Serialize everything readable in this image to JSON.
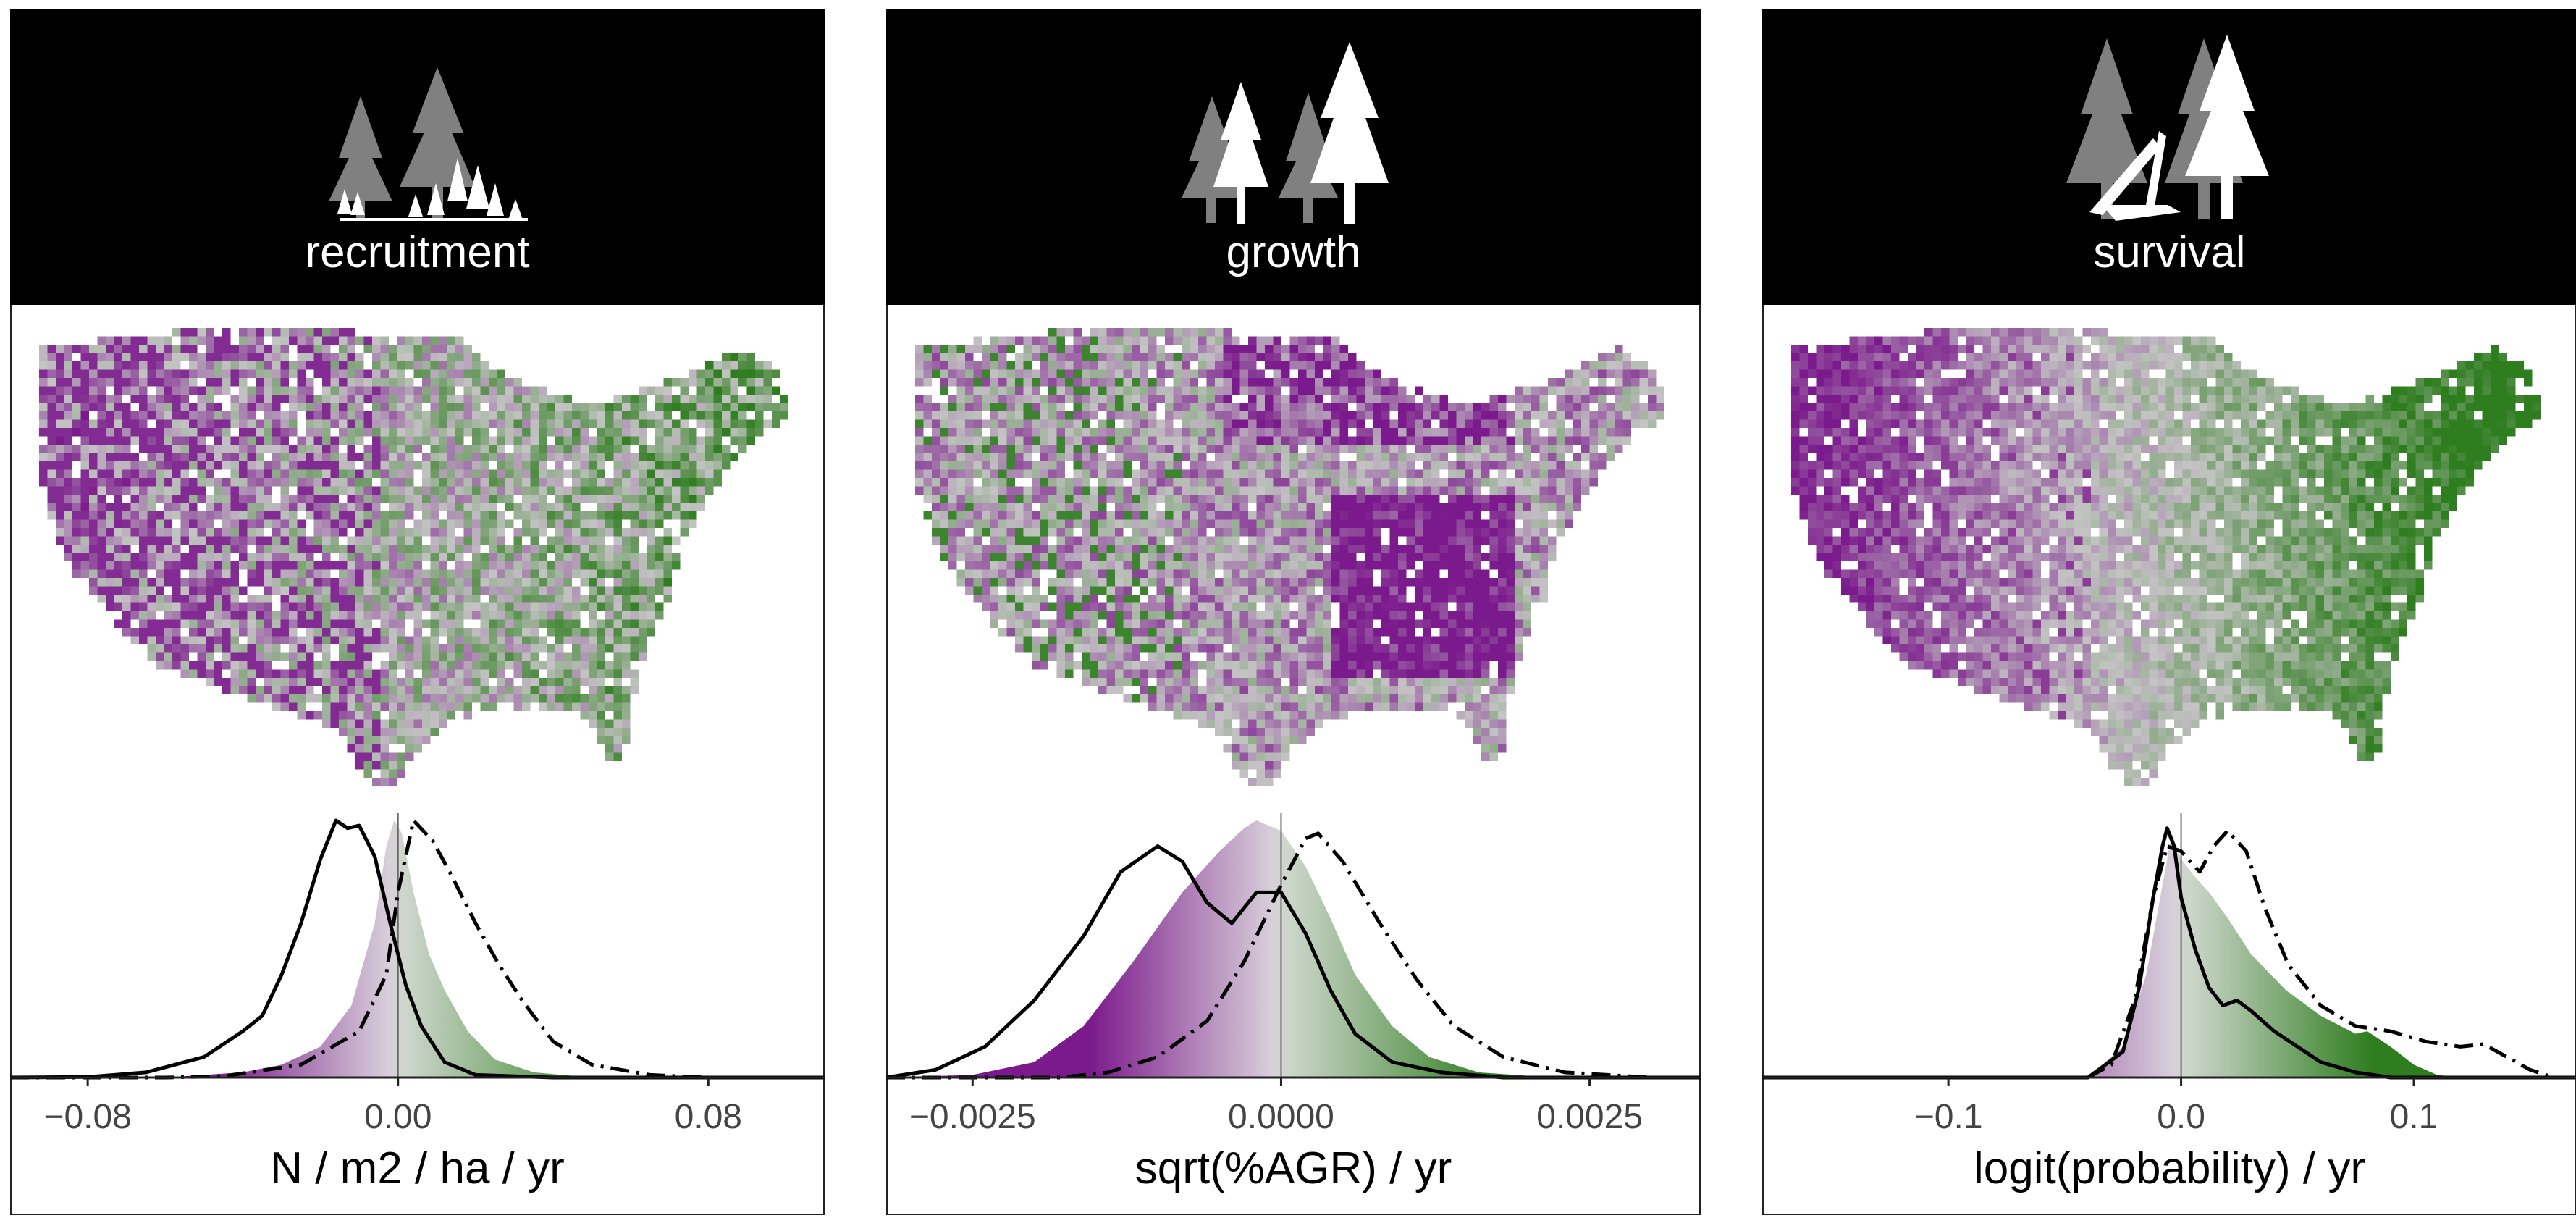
{
  "colors": {
    "positive": "#2e7d1e",
    "negative": "#7b1a8c",
    "neutral": "#c4c4c4",
    "header_bg": "#000000"
  },
  "icons": [
    "tree-seedlings-icon",
    "tree-growth-icon",
    "tree-survival-icon"
  ],
  "chart_data": [
    {
      "type": "area",
      "facet": "recruitment",
      "xlabel": "N / m2 / ha / yr",
      "xlim": [
        -0.1,
        0.11
      ],
      "xticks": [
        -0.08,
        0.0,
        0.08
      ],
      "xtick_labels": [
        "−0.08",
        "0.00",
        "0.08"
      ],
      "filled_density": [
        [
          -0.1,
          0
        ],
        [
          -0.06,
          0.0
        ],
        [
          -0.04,
          0.02
        ],
        [
          -0.03,
          0.05
        ],
        [
          -0.02,
          0.12
        ],
        [
          -0.012,
          0.28
        ],
        [
          -0.006,
          0.6
        ],
        [
          -0.003,
          0.9
        ],
        [
          -0.001,
          1.0
        ],
        [
          0.001,
          0.95
        ],
        [
          0.004,
          0.72
        ],
        [
          0.008,
          0.48
        ],
        [
          0.012,
          0.34
        ],
        [
          0.018,
          0.18
        ],
        [
          0.025,
          0.07
        ],
        [
          0.035,
          0.02
        ],
        [
          0.05,
          0.0
        ],
        [
          0.11,
          0
        ]
      ],
      "solid_line": [
        [
          -0.1,
          0
        ],
        [
          -0.08,
          0.002
        ],
        [
          -0.065,
          0.02
        ],
        [
          -0.05,
          0.08
        ],
        [
          -0.04,
          0.18
        ],
        [
          -0.035,
          0.24
        ],
        [
          -0.03,
          0.4
        ],
        [
          -0.025,
          0.6
        ],
        [
          -0.02,
          0.85
        ],
        [
          -0.016,
          1.0
        ],
        [
          -0.013,
          0.97
        ],
        [
          -0.01,
          0.98
        ],
        [
          -0.006,
          0.86
        ],
        [
          -0.002,
          0.6
        ],
        [
          0.002,
          0.36
        ],
        [
          0.006,
          0.2
        ],
        [
          0.012,
          0.06
        ],
        [
          0.02,
          0.01
        ],
        [
          0.04,
          0
        ],
        [
          0.11,
          0
        ]
      ],
      "dashdot_line": [
        [
          -0.1,
          0
        ],
        [
          -0.06,
          0.0
        ],
        [
          -0.045,
          0.005
        ],
        [
          -0.025,
          0.05
        ],
        [
          -0.01,
          0.18
        ],
        [
          -0.003,
          0.4
        ],
        [
          0.0,
          0.72
        ],
        [
          0.004,
          1.0
        ],
        [
          0.009,
          0.92
        ],
        [
          0.014,
          0.78
        ],
        [
          0.02,
          0.6
        ],
        [
          0.026,
          0.44
        ],
        [
          0.032,
          0.3
        ],
        [
          0.04,
          0.14
        ],
        [
          0.05,
          0.05
        ],
        [
          0.065,
          0.01
        ],
        [
          0.08,
          0
        ],
        [
          0.11,
          0
        ]
      ]
    },
    {
      "type": "area",
      "facet": "growth",
      "xlabel": "sqrt(%AGR) / yr",
      "xlim": [
        -0.0032,
        0.0034
      ],
      "xticks": [
        -0.0025,
        0.0,
        0.0025
      ],
      "xtick_labels": [
        "−0.0025",
        "0.0000",
        "0.0025"
      ],
      "filled_density": [
        [
          -0.0032,
          0
        ],
        [
          -0.0025,
          0.01
        ],
        [
          -0.002,
          0.06
        ],
        [
          -0.0016,
          0.2
        ],
        [
          -0.0012,
          0.45
        ],
        [
          -0.0008,
          0.72
        ],
        [
          -0.0005,
          0.88
        ],
        [
          -0.0003,
          0.97
        ],
        [
          -0.0002,
          1.0
        ],
        [
          0.0,
          0.96
        ],
        [
          0.0002,
          0.82
        ],
        [
          0.0004,
          0.62
        ],
        [
          0.0006,
          0.4
        ],
        [
          0.0009,
          0.2
        ],
        [
          0.0012,
          0.08
        ],
        [
          0.0016,
          0.02
        ],
        [
          0.0022,
          0.0
        ],
        [
          0.0034,
          0
        ]
      ],
      "solid_line": [
        [
          -0.0032,
          0
        ],
        [
          -0.0028,
          0.03
        ],
        [
          -0.0024,
          0.12
        ],
        [
          -0.002,
          0.3
        ],
        [
          -0.0016,
          0.55
        ],
        [
          -0.0013,
          0.8
        ],
        [
          -0.001,
          0.9
        ],
        [
          -0.0008,
          0.84
        ],
        [
          -0.0006,
          0.68
        ],
        [
          -0.0004,
          0.6
        ],
        [
          -0.0002,
          0.72
        ],
        [
          0.0,
          0.72
        ],
        [
          0.0002,
          0.56
        ],
        [
          0.0004,
          0.34
        ],
        [
          0.0006,
          0.17
        ],
        [
          0.0009,
          0.06
        ],
        [
          0.0013,
          0.02
        ],
        [
          0.0018,
          0.0
        ],
        [
          0.0034,
          0
        ]
      ],
      "dashdot_line": [
        [
          -0.0032,
          0
        ],
        [
          -0.0018,
          0.0
        ],
        [
          -0.0014,
          0.02
        ],
        [
          -0.001,
          0.08
        ],
        [
          -0.0006,
          0.22
        ],
        [
          -0.0003,
          0.45
        ],
        [
          0.0,
          0.75
        ],
        [
          0.0002,
          0.93
        ],
        [
          0.0003,
          0.95
        ],
        [
          0.0005,
          0.84
        ],
        [
          0.0008,
          0.6
        ],
        [
          0.0011,
          0.38
        ],
        [
          0.0014,
          0.2
        ],
        [
          0.0018,
          0.08
        ],
        [
          0.0023,
          0.02
        ],
        [
          0.003,
          0.0
        ],
        [
          0.0034,
          0
        ]
      ]
    },
    {
      "type": "area",
      "facet": "survival",
      "xlabel": "logit(probability) / yr",
      "xlim": [
        -0.18,
        0.17
      ],
      "xticks": [
        -0.1,
        0.0,
        0.1
      ],
      "xtick_labels": [
        "−0.1",
        "0.0",
        "0.1"
      ],
      "filled_density": [
        [
          -0.18,
          0
        ],
        [
          -0.04,
          0.0
        ],
        [
          -0.025,
          0.12
        ],
        [
          -0.015,
          0.4
        ],
        [
          -0.008,
          0.75
        ],
        [
          -0.004,
          0.95
        ],
        [
          0.0,
          0.85
        ],
        [
          0.006,
          0.78
        ],
        [
          0.012,
          0.72
        ],
        [
          0.02,
          0.62
        ],
        [
          0.03,
          0.48
        ],
        [
          0.045,
          0.34
        ],
        [
          0.06,
          0.24
        ],
        [
          0.075,
          0.17
        ],
        [
          0.08,
          0.18
        ],
        [
          0.09,
          0.12
        ],
        [
          0.1,
          0.05
        ],
        [
          0.11,
          0.01
        ],
        [
          0.12,
          0.0
        ],
        [
          0.17,
          0
        ]
      ],
      "solid_line": [
        [
          -0.18,
          0
        ],
        [
          -0.04,
          0.0
        ],
        [
          -0.025,
          0.1
        ],
        [
          -0.018,
          0.35
        ],
        [
          -0.012,
          0.7
        ],
        [
          -0.008,
          0.9
        ],
        [
          -0.006,
          0.97
        ],
        [
          -0.003,
          0.9
        ],
        [
          0.0,
          0.7
        ],
        [
          0.006,
          0.5
        ],
        [
          0.012,
          0.35
        ],
        [
          0.018,
          0.28
        ],
        [
          0.024,
          0.3
        ],
        [
          0.03,
          0.26
        ],
        [
          0.04,
          0.18
        ],
        [
          0.05,
          0.12
        ],
        [
          0.06,
          0.06
        ],
        [
          0.075,
          0.02
        ],
        [
          0.09,
          0.0
        ],
        [
          0.17,
          0
        ]
      ],
      "dashdot_line": [
        [
          -0.18,
          0
        ],
        [
          -0.04,
          0.0
        ],
        [
          -0.03,
          0.05
        ],
        [
          -0.02,
          0.3
        ],
        [
          -0.012,
          0.7
        ],
        [
          -0.006,
          0.9
        ],
        [
          0.0,
          0.88
        ],
        [
          0.008,
          0.8
        ],
        [
          0.014,
          0.9
        ],
        [
          0.02,
          0.96
        ],
        [
          0.028,
          0.88
        ],
        [
          0.036,
          0.66
        ],
        [
          0.046,
          0.44
        ],
        [
          0.06,
          0.28
        ],
        [
          0.075,
          0.2
        ],
        [
          0.09,
          0.18
        ],
        [
          0.105,
          0.14
        ],
        [
          0.12,
          0.12
        ],
        [
          0.13,
          0.13
        ],
        [
          0.14,
          0.08
        ],
        [
          0.15,
          0.03
        ],
        [
          0.16,
          0.0
        ],
        [
          0.17,
          0
        ]
      ]
    }
  ]
}
